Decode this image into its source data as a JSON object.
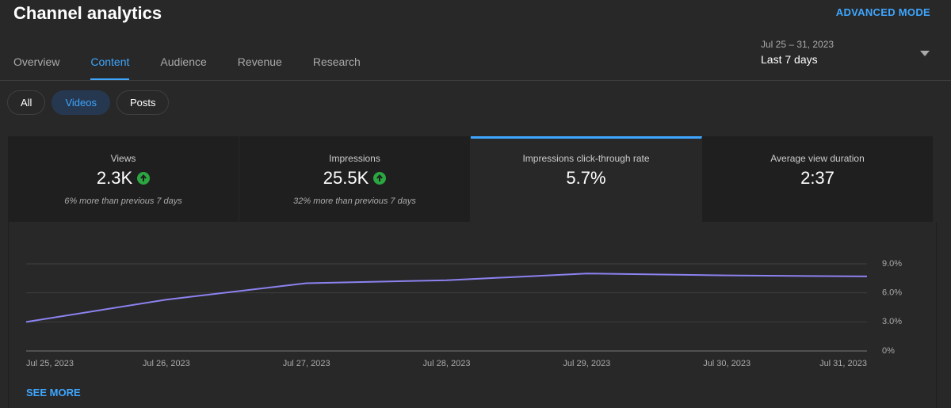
{
  "header": {
    "title": "Channel analytics",
    "advanced_mode": "ADVANCED MODE"
  },
  "tabs": {
    "items": [
      "Overview",
      "Content",
      "Audience",
      "Revenue",
      "Research"
    ],
    "active": 1
  },
  "date_range": {
    "range": "Jul 25 – 31, 2023",
    "period": "Last 7 days"
  },
  "filters": {
    "items": [
      "All",
      "Videos",
      "Posts"
    ],
    "active": 1
  },
  "metrics": {
    "items": [
      {
        "label": "Views",
        "value": "2.3K",
        "trend": "up",
        "comparison": "6% more than previous 7 days"
      },
      {
        "label": "Impressions",
        "value": "25.5K",
        "trend": "up",
        "comparison": "32% more than previous 7 days"
      },
      {
        "label": "Impressions click-through rate",
        "value": "5.7%"
      },
      {
        "label": "Average view duration",
        "value": "2:37"
      }
    ],
    "active": 2
  },
  "chart_data": {
    "type": "line",
    "categories": [
      "Jul 25, 2023",
      "Jul 26, 2023",
      "Jul 27, 2023",
      "Jul 28, 2023",
      "Jul 29, 2023",
      "Jul 30, 2023",
      "Jul 31, 2023"
    ],
    "values": [
      3.0,
      5.3,
      7.0,
      7.3,
      8.0,
      7.8,
      7.7
    ],
    "color": "#8c82f0",
    "ylim": [
      0,
      9
    ],
    "yticks": [
      {
        "value": 0,
        "label": "0%"
      },
      {
        "value": 3,
        "label": "3.0%"
      },
      {
        "value": 6,
        "label": "6.0%"
      },
      {
        "value": 9,
        "label": "9.0%"
      }
    ],
    "grid": true
  },
  "see_more": "SEE MORE"
}
